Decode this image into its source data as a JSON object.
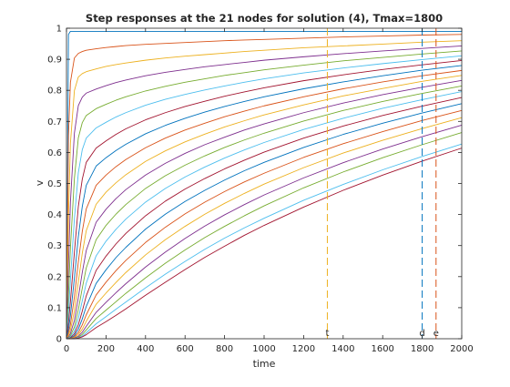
{
  "chart_data": {
    "type": "line",
    "title": "Step responses at the 21 nodes for solution (4), Tmax=1800",
    "xlabel": "time",
    "ylabel": "v",
    "xlim": [
      0,
      2000
    ],
    "ylim": [
      0,
      1
    ],
    "xticks": [
      0,
      200,
      400,
      600,
      800,
      1000,
      1200,
      1400,
      1600,
      1800,
      2000
    ],
    "yticks": [
      0,
      0.1,
      0.2,
      0.3,
      0.4,
      0.5,
      0.6,
      0.7,
      0.8,
      0.9,
      1
    ],
    "xtick_labels": [
      "0",
      "200",
      "400",
      "600",
      "800",
      "1000",
      "1200",
      "1400",
      "1600",
      "1800",
      "2000"
    ],
    "ytick_labels": [
      "0",
      "0.1",
      "0.2",
      "0.3",
      "0.4",
      "0.5",
      "0.6",
      "0.7",
      "0.8",
      "0.9",
      "1"
    ],
    "grid": false,
    "box": true,
    "series_colors": [
      "#0072BD",
      "#D95319",
      "#EDB120",
      "#7E2F8E",
      "#77AC30",
      "#4DBEEE",
      "#A2142F"
    ],
    "x": [
      0,
      10,
      20,
      40,
      60,
      80,
      100,
      150,
      200,
      250,
      300,
      400,
      500,
      600,
      700,
      800,
      900,
      1000,
      1200,
      1400,
      1600,
      1800,
      2000
    ],
    "series": [
      {
        "values": [
          0,
          0.98,
          0.99,
          0.99,
          0.99,
          0.99,
          0.99,
          0.99,
          0.99,
          0.99,
          0.99,
          0.99,
          0.99,
          0.99,
          0.99,
          0.99,
          0.99,
          0.99,
          0.99,
          0.99,
          0.99,
          0.99,
          0.99
        ]
      },
      {
        "values": [
          0,
          0.655,
          0.826,
          0.904,
          0.919,
          0.925,
          0.929,
          0.934,
          0.938,
          0.941,
          0.944,
          0.948,
          0.951,
          0.954,
          0.957,
          0.96,
          0.962,
          0.964,
          0.968,
          0.972,
          0.975,
          0.978,
          0.98
        ]
      },
      {
        "values": [
          0,
          0.393,
          0.63,
          0.799,
          0.843,
          0.854,
          0.86,
          0.869,
          0.877,
          0.883,
          0.888,
          0.897,
          0.904,
          0.91,
          0.915,
          0.92,
          0.925,
          0.929,
          0.937,
          0.943,
          0.949,
          0.955,
          0.96
        ]
      },
      {
        "values": [
          0,
          0.236,
          0.44,
          0.662,
          0.751,
          0.778,
          0.791,
          0.804,
          0.815,
          0.825,
          0.833,
          0.847,
          0.858,
          0.867,
          0.876,
          0.883,
          0.89,
          0.897,
          0.908,
          0.918,
          0.927,
          0.935,
          0.943
        ]
      },
      {
        "values": [
          0,
          0.141,
          0.293,
          0.516,
          0.647,
          0.696,
          0.719,
          0.741,
          0.755,
          0.768,
          0.779,
          0.798,
          0.813,
          0.826,
          0.837,
          0.848,
          0.857,
          0.866,
          0.881,
          0.895,
          0.906,
          0.917,
          0.927
        ]
      },
      {
        "values": [
          0,
          0.085,
          0.19,
          0.386,
          0.535,
          0.609,
          0.646,
          0.679,
          0.697,
          0.714,
          0.728,
          0.752,
          0.771,
          0.787,
          0.801,
          0.814,
          0.826,
          0.837,
          0.856,
          0.872,
          0.886,
          0.899,
          0.911
        ]
      },
      {
        "values": [
          0,
          0.051,
          0.12,
          0.278,
          0.426,
          0.514,
          0.568,
          0.614,
          0.637,
          0.658,
          0.676,
          0.705,
          0.728,
          0.748,
          0.765,
          0.781,
          0.795,
          0.808,
          0.831,
          0.85,
          0.867,
          0.882,
          0.896
        ]
      },
      {
        "values": [
          0,
          0.03,
          0.075,
          0.195,
          0.329,
          0.426,
          0.494,
          0.556,
          0.583,
          0.606,
          0.626,
          0.66,
          0.687,
          0.71,
          0.73,
          0.748,
          0.764,
          0.779,
          0.805,
          0.827,
          0.847,
          0.865,
          0.88
        ]
      },
      {
        "values": [
          0,
          0.018,
          0.046,
          0.134,
          0.248,
          0.346,
          0.418,
          0.494,
          0.527,
          0.554,
          0.577,
          0.615,
          0.646,
          0.672,
          0.694,
          0.715,
          0.733,
          0.75,
          0.779,
          0.805,
          0.827,
          0.847,
          0.864
        ]
      },
      {
        "values": [
          0,
          0.011,
          0.028,
          0.09,
          0.183,
          0.276,
          0.348,
          0.433,
          0.472,
          0.502,
          0.528,
          0.571,
          0.605,
          0.634,
          0.659,
          0.682,
          0.702,
          0.721,
          0.753,
          0.782,
          0.806,
          0.829,
          0.848
        ]
      },
      {
        "values": [
          0,
          0.006,
          0.017,
          0.059,
          0.133,
          0.214,
          0.284,
          0.375,
          0.417,
          0.451,
          0.48,
          0.527,
          0.565,
          0.597,
          0.625,
          0.649,
          0.672,
          0.692,
          0.728,
          0.759,
          0.786,
          0.81,
          0.832
        ]
      },
      {
        "values": [
          0,
          0.003,
          0.01,
          0.038,
          0.094,
          0.163,
          0.228,
          0.319,
          0.365,
          0.401,
          0.432,
          0.484,
          0.525,
          0.559,
          0.589,
          0.616,
          0.64,
          0.662,
          0.701,
          0.735,
          0.764,
          0.79,
          0.814
        ]
      },
      {
        "values": [
          0,
          0.002,
          0.006,
          0.025,
          0.066,
          0.122,
          0.179,
          0.267,
          0.314,
          0.352,
          0.385,
          0.44,
          0.484,
          0.521,
          0.553,
          0.582,
          0.608,
          0.632,
          0.674,
          0.71,
          0.742,
          0.77,
          0.796
        ]
      },
      {
        "values": [
          0,
          0.001,
          0.003,
          0.016,
          0.045,
          0.089,
          0.138,
          0.22,
          0.266,
          0.305,
          0.339,
          0.396,
          0.443,
          0.482,
          0.516,
          0.547,
          0.575,
          0.601,
          0.646,
          0.685,
          0.719,
          0.749,
          0.777
        ]
      },
      {
        "values": [
          0,
          0.0,
          0.002,
          0.01,
          0.031,
          0.064,
          0.104,
          0.178,
          0.222,
          0.261,
          0.294,
          0.353,
          0.401,
          0.442,
          0.478,
          0.511,
          0.541,
          0.568,
          0.616,
          0.658,
          0.694,
          0.727,
          0.757
        ]
      },
      {
        "values": [
          0,
          0.0,
          0.001,
          0.006,
          0.02,
          0.045,
          0.077,
          0.141,
          0.182,
          0.219,
          0.252,
          0.31,
          0.359,
          0.402,
          0.44,
          0.474,
          0.505,
          0.533,
          0.584,
          0.628,
          0.667,
          0.703,
          0.735
        ]
      },
      {
        "values": [
          0,
          0.0,
          0.001,
          0.004,
          0.013,
          0.031,
          0.056,
          0.111,
          0.147,
          0.181,
          0.213,
          0.27,
          0.319,
          0.362,
          0.401,
          0.436,
          0.468,
          0.498,
          0.551,
          0.598,
          0.639,
          0.677,
          0.712
        ]
      },
      {
        "values": [
          0,
          0.0,
          0.0,
          0.002,
          0.008,
          0.021,
          0.04,
          0.085,
          0.117,
          0.148,
          0.177,
          0.231,
          0.279,
          0.323,
          0.363,
          0.399,
          0.432,
          0.463,
          0.518,
          0.567,
          0.611,
          0.651,
          0.688
        ]
      },
      {
        "values": [
          0,
          0.0,
          0.0,
          0.001,
          0.005,
          0.014,
          0.028,
          0.065,
          0.092,
          0.119,
          0.146,
          0.196,
          0.243,
          0.286,
          0.326,
          0.362,
          0.396,
          0.428,
          0.486,
          0.537,
          0.583,
          0.625,
          0.664
        ]
      },
      {
        "values": [
          0,
          0.0,
          0.0,
          0.001,
          0.003,
          0.009,
          0.019,
          0.048,
          0.071,
          0.095,
          0.118,
          0.164,
          0.208,
          0.249,
          0.288,
          0.324,
          0.357,
          0.388,
          0.446,
          0.497,
          0.544,
          0.587,
          0.627
        ]
      },
      {
        "values": [
          0,
          0.0,
          0.0,
          0.0,
          0.002,
          0.006,
          0.013,
          0.036,
          0.055,
          0.075,
          0.096,
          0.14,
          0.182,
          0.223,
          0.262,
          0.298,
          0.333,
          0.365,
          0.424,
          0.478,
          0.527,
          0.572,
          0.614
        ]
      }
    ],
    "vertical_markers": [
      {
        "label": "t",
        "x": 1320,
        "color": "#EDB120"
      },
      {
        "label": "d",
        "x": 1800,
        "color": "#0072BD"
      },
      {
        "label": "e",
        "x": 1870,
        "color": "#D95319"
      }
    ]
  }
}
